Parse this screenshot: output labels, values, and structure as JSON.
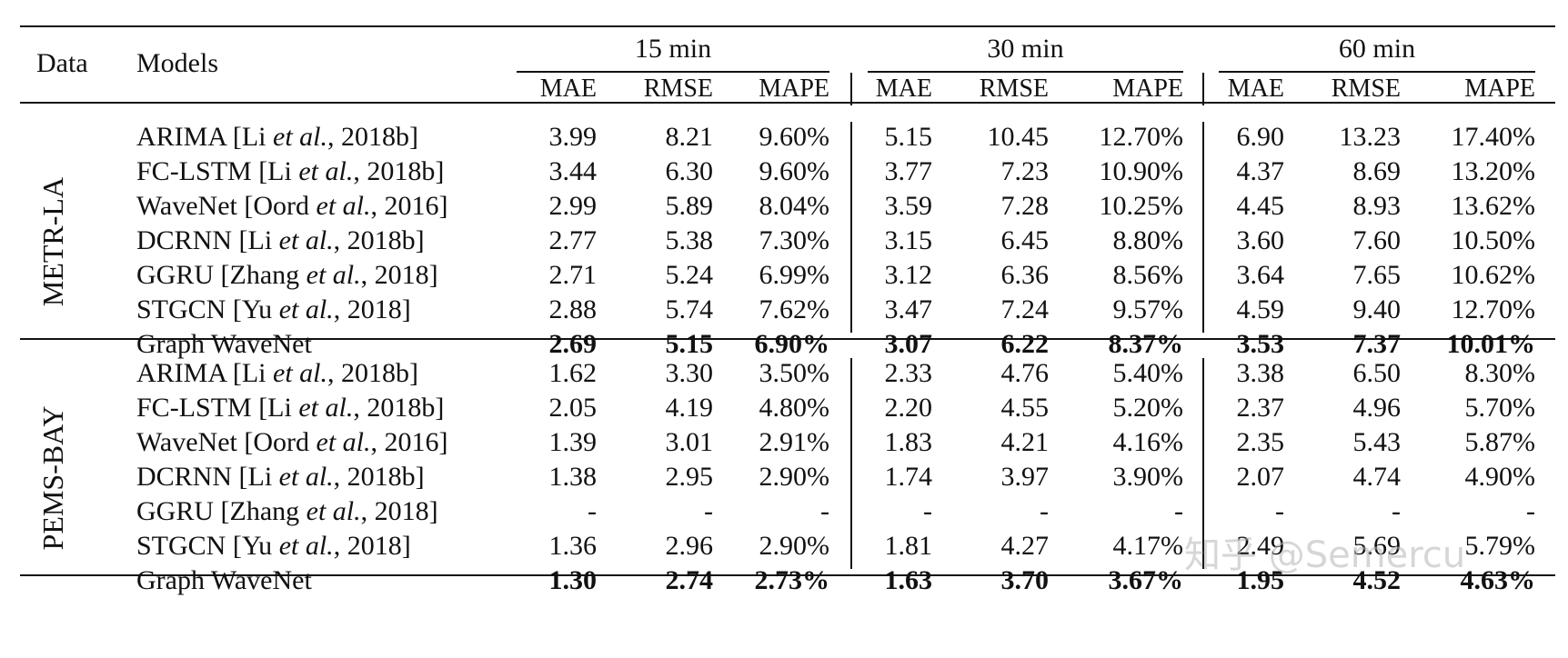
{
  "header": {
    "data": "Data",
    "models": "Models",
    "horizons": [
      "15 min",
      "30 min",
      "60 min"
    ],
    "metrics": [
      "MAE",
      "RMSE",
      "MAPE"
    ]
  },
  "groups": [
    {
      "name": "METR-LA",
      "rows": [
        {
          "model": "ARIMA [Li ",
          "model_it": "et al.",
          "model_tail": ", 2018b]",
          "vals": [
            "3.99",
            "8.21",
            "9.60%",
            "5.15",
            "10.45",
            "12.70%",
            "6.90",
            "13.23",
            "17.40%"
          ],
          "bold": false
        },
        {
          "model": "FC-LSTM [Li ",
          "model_it": "et al.",
          "model_tail": ", 2018b]",
          "vals": [
            "3.44",
            "6.30",
            "9.60%",
            "3.77",
            "7.23",
            "10.90%",
            "4.37",
            "8.69",
            "13.20%"
          ],
          "bold": false
        },
        {
          "model": "WaveNet [Oord ",
          "model_it": "et al.",
          "model_tail": ", 2016]",
          "vals": [
            "2.99",
            "5.89",
            "8.04%",
            "3.59",
            "7.28",
            "10.25%",
            "4.45",
            "8.93",
            "13.62%"
          ],
          "bold": false
        },
        {
          "model": "DCRNN [Li ",
          "model_it": "et al.",
          "model_tail": ", 2018b]",
          "vals": [
            "2.77",
            "5.38",
            "7.30%",
            "3.15",
            "6.45",
            "8.80%",
            "3.60",
            "7.60",
            "10.50%"
          ],
          "bold": false
        },
        {
          "model": "GGRU [Zhang ",
          "model_it": "et al.",
          "model_tail": ", 2018]",
          "vals": [
            "2.71",
            "5.24",
            "6.99%",
            "3.12",
            "6.36",
            "8.56%",
            "3.64",
            "7.65",
            "10.62%"
          ],
          "bold": false
        },
        {
          "model": "STGCN [Yu ",
          "model_it": "et al.",
          "model_tail": ", 2018]",
          "vals": [
            "2.88",
            "5.74",
            "7.62%",
            "3.47",
            "7.24",
            "9.57%",
            "4.59",
            "9.40",
            "12.70%"
          ],
          "bold": false
        },
        {
          "model": "Graph WaveNet",
          "model_it": "",
          "model_tail": "",
          "vals": [
            "2.69",
            "5.15",
            "6.90%",
            "3.07",
            "6.22",
            "8.37%",
            "3.53",
            "7.37",
            "10.01%"
          ],
          "bold": true
        }
      ]
    },
    {
      "name": "PEMS-BAY",
      "rows": [
        {
          "model": "ARIMA [Li ",
          "model_it": "et al.",
          "model_tail": ", 2018b]",
          "vals": [
            "1.62",
            "3.30",
            "3.50%",
            "2.33",
            "4.76",
            "5.40%",
            "3.38",
            "6.50",
            "8.30%"
          ],
          "bold": false
        },
        {
          "model": "FC-LSTM [Li ",
          "model_it": "et al.",
          "model_tail": ", 2018b]",
          "vals": [
            "2.05",
            "4.19",
            "4.80%",
            "2.20",
            "4.55",
            "5.20%",
            "2.37",
            "4.96",
            "5.70%"
          ],
          "bold": false
        },
        {
          "model": "WaveNet [Oord ",
          "model_it": "et al.",
          "model_tail": ", 2016]",
          "vals": [
            "1.39",
            "3.01",
            "2.91%",
            "1.83",
            "4.21",
            "4.16%",
            "2.35",
            "5.43",
            "5.87%"
          ],
          "bold": false
        },
        {
          "model": "DCRNN [Li ",
          "model_it": "et al.",
          "model_tail": ", 2018b]",
          "vals": [
            "1.38",
            "2.95",
            "2.90%",
            "1.74",
            "3.97",
            "3.90%",
            "2.07",
            "4.74",
            "4.90%"
          ],
          "bold": false
        },
        {
          "model": "GGRU [Zhang ",
          "model_it": "et al.",
          "model_tail": ", 2018]",
          "vals": [
            "-",
            "-",
            "-",
            "-",
            "-",
            "-",
            "-",
            "-",
            "-"
          ],
          "bold": false
        },
        {
          "model": "STGCN [Yu ",
          "model_it": "et al.",
          "model_tail": ", 2018]",
          "vals": [
            "1.36",
            "2.96",
            "2.90%",
            "1.81",
            "4.27",
            "4.17%",
            "2.49",
            "5.69",
            "5.79%"
          ],
          "bold": false
        },
        {
          "model": "Graph WaveNet",
          "model_it": "",
          "model_tail": "",
          "vals": [
            "1.30",
            "2.74",
            "2.73%",
            "1.63",
            "3.70",
            "3.67%",
            "1.95",
            "4.52",
            "4.63%"
          ],
          "bold": true
        }
      ]
    }
  ],
  "watermark": "知乎 @Semercu"
}
